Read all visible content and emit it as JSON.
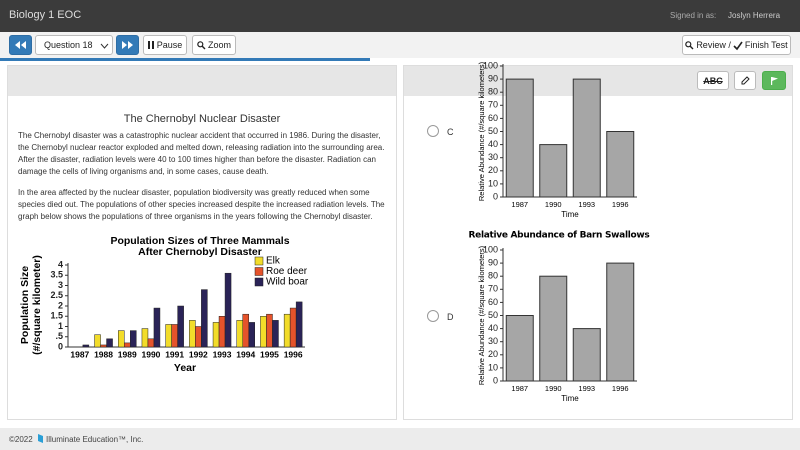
{
  "header": {
    "title": "Biology 1 EOC",
    "signed_in_label": "Signed in as:",
    "user": "Joslyn Herrera"
  },
  "toolbar": {
    "question": "Question 18",
    "pause": "Pause",
    "zoom": "Zoom",
    "review": "Review /",
    "finish": "Finish Test"
  },
  "passage": {
    "title": "The Chernobyl Nuclear Disaster",
    "paragraphs": [
      "The Chernobyl disaster was a catastrophic nuclear accident that occurred in 1986. During the disaster, the Chernobyl nuclear reactor exploded and melted down, releasing radiation into the surrounding area. After the disaster, radiation levels were 40 to 100 times higher than before the disaster. Radiation can damage the cells of living organisms and, in some cases, cause death.",
      "In the area affected by the nuclear disaster, population biodiversity was greatly reduced when some species died out. The populations of other species increased despite the increased radiation levels. The graph below shows the populations of three organisms in the years following the Chernobyl disaster."
    ]
  },
  "chart_data": [
    {
      "type": "grouped-bar",
      "title": "Population Sizes of Three Mammals",
      "subtitle": "After Chernobyl Disaster",
      "ylabel": "Population Size",
      "ylabel_units": "(#/square kilometer)",
      "xlabel": "Year",
      "categories": [
        "1987",
        "1988",
        "1989",
        "1990",
        "1991",
        "1992",
        "1993",
        "1994",
        "1995",
        "1996"
      ],
      "series": [
        {
          "name": "Elk",
          "color": "#f2dc2a",
          "values": [
            0,
            0.6,
            0.8,
            0.9,
            1.1,
            1.3,
            1.2,
            1.3,
            1.5,
            1.6
          ]
        },
        {
          "name": "Roe deer",
          "color": "#e5532b",
          "values": [
            0,
            0.1,
            0.2,
            0.4,
            1.1,
            1.0,
            1.5,
            1.6,
            1.6,
            1.9
          ]
        },
        {
          "name": "Wild boar",
          "color": "#2a2357",
          "values": [
            0.1,
            0.4,
            0.8,
            1.9,
            2.0,
            2.8,
            3.6,
            1.2,
            1.3,
            2.2
          ]
        }
      ],
      "ylim": [
        0,
        4
      ],
      "yticks": [
        0,
        {
          "value": 0.5,
          "label": ".5"
        },
        1,
        1.5,
        2,
        2.5,
        3,
        3.5,
        4
      ]
    },
    {
      "type": "bar",
      "ylabel": "Relative Abundance (#/square kilometers)",
      "xlabel": "Time",
      "categories": [
        "1987",
        "1990",
        "1993",
        "1996"
      ],
      "values": [
        90,
        40,
        90,
        50
      ],
      "color": "#a6a6a6",
      "ylim": [
        0,
        100
      ],
      "yticks": [
        0,
        10,
        20,
        30,
        40,
        50,
        60,
        70,
        80,
        90,
        100
      ]
    },
    {
      "type": "bar",
      "title": "Relative Abundance of Barn Swallows",
      "ylabel": "Relative Abundance (#/square kilometers)",
      "xlabel": "Time",
      "categories": [
        "1987",
        "1990",
        "1993",
        "1996"
      ],
      "values": [
        50,
        80,
        40,
        90
      ],
      "color": "#a6a6a6",
      "ylim": [
        0,
        100
      ],
      "yticks": [
        0,
        10,
        20,
        30,
        40,
        50,
        60,
        70,
        80,
        90,
        100
      ]
    }
  ],
  "answers": {
    "strike_tool": "ABC",
    "options": [
      "C",
      "D"
    ]
  },
  "footer": {
    "copyright": "©2022",
    "company": "Illuminate Education™, Inc."
  }
}
